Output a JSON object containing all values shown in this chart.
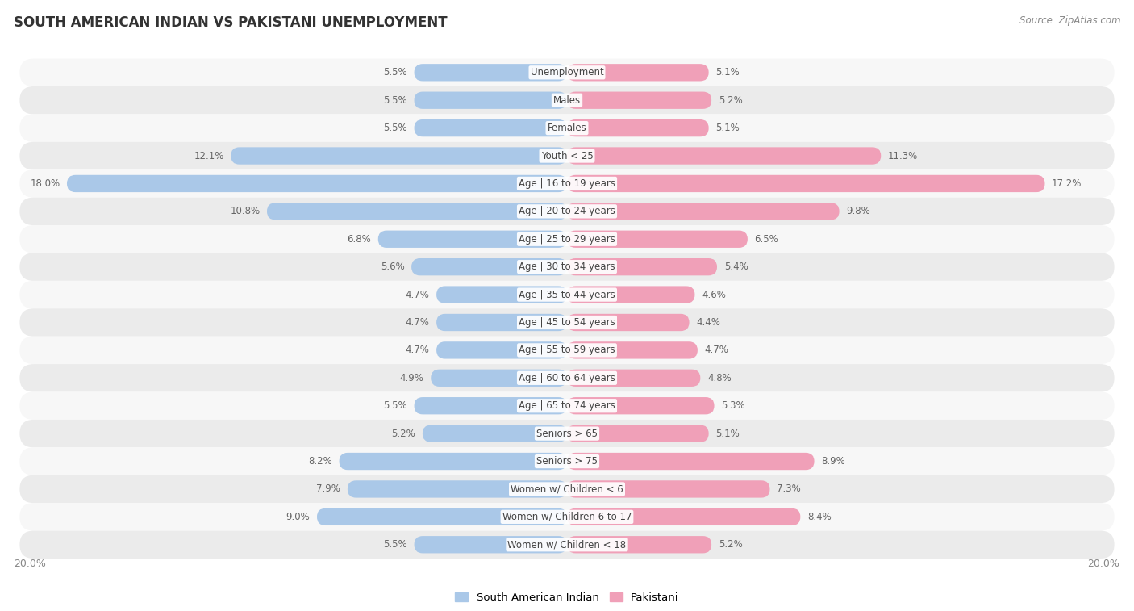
{
  "title": "SOUTH AMERICAN INDIAN VS PAKISTANI UNEMPLOYMENT",
  "source": "Source: ZipAtlas.com",
  "categories": [
    "Unemployment",
    "Males",
    "Females",
    "Youth < 25",
    "Age | 16 to 19 years",
    "Age | 20 to 24 years",
    "Age | 25 to 29 years",
    "Age | 30 to 34 years",
    "Age | 35 to 44 years",
    "Age | 45 to 54 years",
    "Age | 55 to 59 years",
    "Age | 60 to 64 years",
    "Age | 65 to 74 years",
    "Seniors > 65",
    "Seniors > 75",
    "Women w/ Children < 6",
    "Women w/ Children 6 to 17",
    "Women w/ Children < 18"
  ],
  "south_american_indian": [
    5.5,
    5.5,
    5.5,
    12.1,
    18.0,
    10.8,
    6.8,
    5.6,
    4.7,
    4.7,
    4.7,
    4.9,
    5.5,
    5.2,
    8.2,
    7.9,
    9.0,
    5.5
  ],
  "pakistani": [
    5.1,
    5.2,
    5.1,
    11.3,
    17.2,
    9.8,
    6.5,
    5.4,
    4.6,
    4.4,
    4.7,
    4.8,
    5.3,
    5.1,
    8.9,
    7.3,
    8.4,
    5.2
  ],
  "max_val": 20.0,
  "blue_color": "#aac8e8",
  "pink_color": "#f0a0b8",
  "row_bg_light": "#f7f7f7",
  "row_bg_dark": "#ebebeb",
  "text_color": "#666666",
  "label_color": "#444444",
  "axis_label_color": "#888888",
  "title_color": "#333333",
  "source_color": "#888888"
}
